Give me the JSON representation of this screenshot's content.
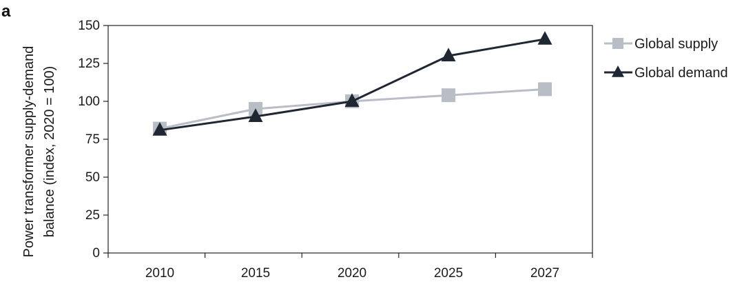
{
  "panel_label": "a",
  "chart_data": {
    "type": "line",
    "categories": [
      "2010",
      "2015",
      "2020",
      "2025",
      "2027"
    ],
    "series": [
      {
        "name": "Global supply",
        "values": [
          82,
          95,
          100,
          104,
          108
        ],
        "color": "#b9bdc6",
        "marker": "square"
      },
      {
        "name": "Global demand",
        "values": [
          81,
          90,
          100,
          130,
          141
        ],
        "color": "#1f2733",
        "marker": "triangle"
      }
    ],
    "title": "",
    "xlabel": "",
    "ylabel": "Power transformer supply-demand balance (index, 2020 = 100)",
    "ylabel_lines": [
      "Power transformer supply-demand",
      "balance (index, 2020 = 100)"
    ],
    "ylim": [
      0,
      150
    ],
    "yticks": [
      0,
      25,
      50,
      75,
      100,
      125,
      150
    ],
    "grid": false,
    "legend_position": "right"
  }
}
